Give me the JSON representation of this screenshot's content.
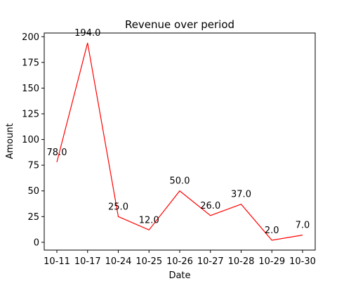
{
  "chart_data": {
    "type": "line",
    "title": "Revenue over period",
    "xlabel": "Date",
    "ylabel": "Amount",
    "categories": [
      "10-11",
      "10-17",
      "10-24",
      "10-25",
      "10-26",
      "10-27",
      "10-28",
      "10-29",
      "10-30"
    ],
    "values": [
      78.0,
      194.0,
      25.0,
      12.0,
      50.0,
      26.0,
      37.0,
      2.0,
      7.0
    ],
    "data_labels": [
      "78.0",
      "194.0",
      "25.0",
      "12.0",
      "50.0",
      "26.0",
      "37.0",
      "2.0",
      "7.0"
    ],
    "yticks": [
      0,
      25,
      50,
      75,
      100,
      125,
      150,
      175,
      200
    ],
    "ylim": [
      -7.6,
      203.6
    ],
    "line_color": "#ff0000",
    "grid": false,
    "legend": "none"
  }
}
